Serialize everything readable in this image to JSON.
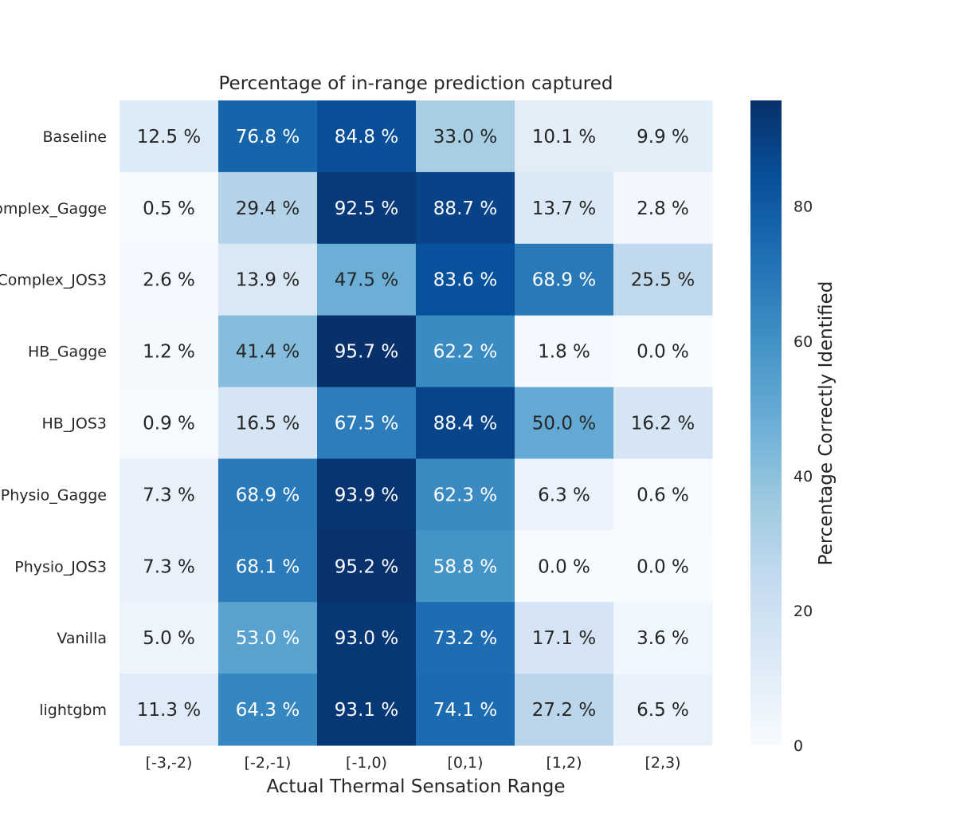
{
  "chart_data": {
    "type": "heatmap",
    "title": "Percentage of in-range prediction captured",
    "xlabel": "Actual Thermal Sensation Range",
    "ylabel": "",
    "x_categories": [
      "[-3,-2)",
      "[-2,-1)",
      "[-1,0)",
      "[0,1)",
      "[1,2)",
      "[2,3)"
    ],
    "y_categories": [
      "Baseline",
      "Complex_Gagge",
      "Complex_JOS3",
      "HB_Gagge",
      "HB_JOS3",
      "Physio_Gagge",
      "Physio_JOS3",
      "Vanilla",
      "lightgbm"
    ],
    "y_tick_labels": [
      "Baseline",
      "omplex_Gagge",
      "Complex_JOS3",
      "HB_Gagge",
      "HB_JOS3",
      "Physio_Gagge",
      "Physio_JOS3",
      "Vanilla",
      "lightgbm"
    ],
    "values": [
      [
        12.5,
        76.8,
        84.8,
        33.0,
        10.1,
        9.9
      ],
      [
        0.5,
        29.4,
        92.5,
        88.7,
        13.7,
        2.8
      ],
      [
        2.6,
        13.9,
        47.5,
        83.6,
        68.9,
        25.5
      ],
      [
        1.2,
        41.4,
        95.7,
        62.2,
        1.8,
        0.0
      ],
      [
        0.9,
        16.5,
        67.5,
        88.4,
        50.0,
        16.2
      ],
      [
        7.3,
        68.9,
        93.9,
        62.3,
        6.3,
        0.6
      ],
      [
        7.3,
        68.1,
        95.2,
        58.8,
        0.0,
        0.0
      ],
      [
        5.0,
        53.0,
        93.0,
        73.2,
        17.1,
        3.6
      ],
      [
        11.3,
        64.3,
        93.1,
        74.1,
        27.2,
        6.5
      ]
    ],
    "value_suffix": " %",
    "colorbar": {
      "label": "Percentage Correctly Identified",
      "ticks": [
        0,
        20,
        40,
        60,
        80
      ],
      "range": [
        0,
        95.7
      ],
      "colormap": "Blues"
    },
    "grid": false
  }
}
